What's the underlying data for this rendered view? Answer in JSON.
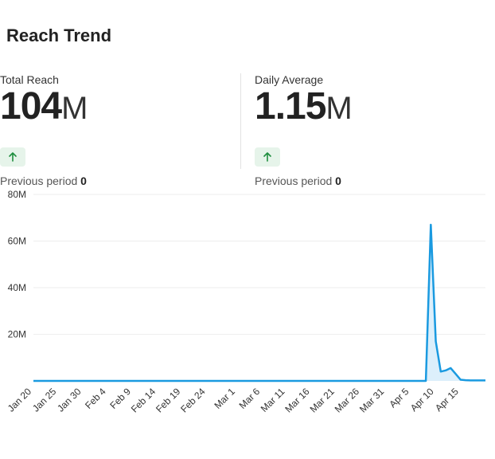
{
  "header": {
    "title": "Reach Trend"
  },
  "metrics": [
    {
      "label": "Total Reach",
      "value": "104",
      "unit": "M",
      "trend_icon": "arrow-up-icon",
      "prev_label": "Previous period",
      "prev_value": "0"
    },
    {
      "label": "Daily Average",
      "value": "1.15",
      "unit": "M",
      "trend_icon": "arrow-up-icon",
      "prev_label": "Previous period",
      "prev_value": "0"
    }
  ],
  "colors": {
    "line": "#1a9ae0",
    "area": "#dceffb",
    "badge_bg": "#e6f4ea",
    "badge_icon": "#1e8e3e",
    "grid": "#eeeeee"
  },
  "chart_data": {
    "type": "area",
    "x_start": "2024-01-20",
    "x_end": "2024-04-20",
    "ylim": [
      0,
      80000000
    ],
    "y_ticks": [
      20000000,
      40000000,
      60000000,
      80000000
    ],
    "y_tick_labels": [
      "20M",
      "40M",
      "60M",
      "80M"
    ],
    "x_tick_dates": [
      "2024-01-20",
      "2024-01-25",
      "2024-01-30",
      "2024-02-04",
      "2024-02-09",
      "2024-02-14",
      "2024-02-19",
      "2024-02-24",
      "2024-03-01",
      "2024-03-06",
      "2024-03-11",
      "2024-03-16",
      "2024-03-21",
      "2024-03-26",
      "2024-03-31",
      "2024-04-05",
      "2024-04-10",
      "2024-04-15"
    ],
    "x_tick_labels": [
      "Jan 20",
      "Jan 25",
      "Jan 30",
      "Feb 4",
      "Feb 9",
      "Feb 14",
      "Feb 19",
      "Feb 24",
      "Mar 1",
      "Mar 6",
      "Mar 11",
      "Mar 16",
      "Mar 21",
      "Mar 26",
      "Mar 31",
      "Apr 5",
      "Apr 10",
      "Apr 15"
    ],
    "grid": true,
    "points": [
      [
        "2024-01-20",
        0
      ],
      [
        "2024-04-08",
        0
      ],
      [
        "2024-04-09",
        67000000
      ],
      [
        "2024-04-10",
        17000000
      ],
      [
        "2024-04-11",
        4000000
      ],
      [
        "2024-04-12",
        4500000
      ],
      [
        "2024-04-13",
        5500000
      ],
      [
        "2024-04-14",
        3000000
      ],
      [
        "2024-04-15",
        500000
      ],
      [
        "2024-04-16",
        300000
      ],
      [
        "2024-04-17",
        200000
      ],
      [
        "2024-04-18",
        200000
      ],
      [
        "2024-04-19",
        200000
      ],
      [
        "2024-04-20",
        200000
      ]
    ]
  }
}
